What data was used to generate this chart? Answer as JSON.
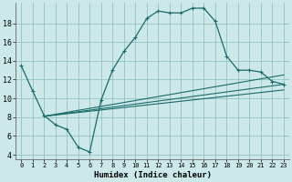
{
  "xlabel": "Humidex (Indice chaleur)",
  "bg_color": "#cce8e8",
  "grid_color": "#88bbbb",
  "line_color": "#1a6b6b",
  "x_ticks": [
    0,
    1,
    2,
    3,
    4,
    5,
    6,
    7,
    8,
    9,
    10,
    11,
    12,
    13,
    14,
    15,
    16,
    17,
    18,
    19,
    20,
    21,
    22,
    23
  ],
  "y_ticks": [
    4,
    6,
    8,
    10,
    12,
    14,
    16,
    18
  ],
  "ylim": [
    3.5,
    20.2
  ],
  "xlim": [
    -0.5,
    23.5
  ],
  "main_curve": [
    13.5,
    10.8,
    8.2,
    7.2,
    6.7,
    4.8,
    4.3,
    9.8,
    13.0,
    15.0,
    16.5,
    18.5,
    19.3,
    19.1,
    19.1,
    19.6,
    19.6,
    18.2,
    14.5,
    13.0,
    13.0,
    12.8,
    11.8,
    11.5
  ],
  "diag_lines": [
    {
      "x_start": 2,
      "y_start": 8.1,
      "x_end": 23,
      "y_end": 10.9
    },
    {
      "x_start": 2,
      "y_start": 8.1,
      "x_end": 23,
      "y_end": 12.5
    },
    {
      "x_start": 2,
      "y_start": 8.1,
      "x_end": 23,
      "y_end": 11.5
    }
  ]
}
